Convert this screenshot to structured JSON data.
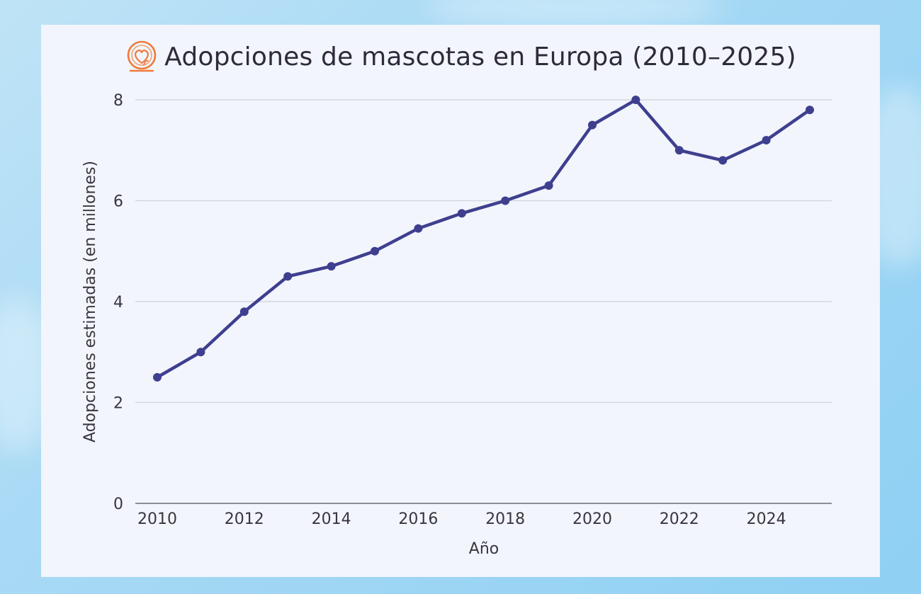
{
  "title": "Adopciones de mascotas en Europa (2010–2025)",
  "logo_icon": "heart-pet-icon",
  "colors": {
    "line": "#3f3f8f",
    "accent": "#f07a3b",
    "grid": "#d4d7e0"
  },
  "chart_data": {
    "type": "line",
    "title": "Adopciones de mascotas en Europa (2010–2025)",
    "xlabel": "Año",
    "ylabel": "Adopciones estimadas (en millones)",
    "x": [
      2010,
      2011,
      2012,
      2013,
      2014,
      2015,
      2016,
      2017,
      2018,
      2019,
      2020,
      2021,
      2022,
      2023,
      2024,
      2025
    ],
    "series": [
      {
        "name": "Adopciones",
        "values": [
          2.5,
          3.0,
          3.8,
          4.5,
          4.7,
          5.0,
          5.45,
          5.75,
          6.0,
          6.3,
          7.5,
          8.0,
          7.0,
          6.8,
          7.2,
          7.8
        ]
      }
    ],
    "xlim": [
      2010,
      2025
    ],
    "ylim": [
      0,
      8
    ],
    "xticks": [
      2010,
      2012,
      2014,
      2016,
      2018,
      2020,
      2022,
      2024
    ],
    "xtick_labels": [
      "2010",
      "2012",
      "2014",
      "2016",
      "2018",
      "2020",
      "2022",
      "2024"
    ],
    "yticks": [
      0,
      2,
      4,
      6,
      8
    ],
    "ytick_labels": [
      "0",
      "2",
      "4",
      "6",
      "8"
    ],
    "grid": true,
    "legend": "none"
  }
}
